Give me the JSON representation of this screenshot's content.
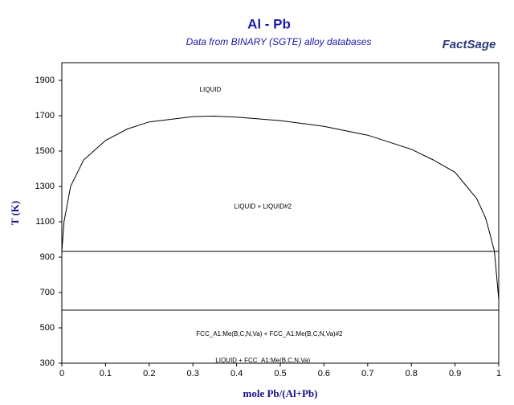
{
  "chart_data": {
    "type": "line",
    "title": "Al - Pb",
    "subtitle": "Data from BINARY (SGTE) alloy databases",
    "logo": "FactSage",
    "x_label": "mole Pb/(Al+Pb)",
    "y_label": "T (K)",
    "xlim": [
      0,
      1
    ],
    "ylim": [
      300,
      2000
    ],
    "xticks": [
      0,
      0.1,
      0.2,
      0.3,
      0.4,
      0.5,
      0.6,
      0.7,
      0.8,
      0.9,
      1
    ],
    "yticks": [
      300,
      500,
      700,
      900,
      1100,
      1300,
      1500,
      1700,
      1900
    ],
    "series": [
      {
        "color": "#000000",
        "x": [
          0,
          0.005,
          0.02,
          0.05,
          0.1,
          0.15,
          0.2,
          0.3,
          0.35,
          0.4,
          0.5,
          0.6,
          0.7,
          0.8,
          0.85,
          0.9,
          0.95,
          0.97,
          0.98,
          0.99,
          0.995,
          1
        ],
        "values": [
          933,
          1100,
          1300,
          1450,
          1560,
          1625,
          1665,
          1695,
          1698,
          1692,
          1672,
          1640,
          1590,
          1510,
          1450,
          1380,
          1230,
          1120,
          1030,
          934,
          800,
          660
        ]
      },
      {
        "color": "#000000",
        "x": [
          0,
          1
        ],
        "values": [
          933,
          933
        ]
      },
      {
        "color": "#000000",
        "x": [
          0,
          1
        ],
        "values": [
          600,
          600
        ]
      }
    ],
    "annotations": [
      {
        "text": "LIQUID",
        "x": 0.34,
        "y": 1845
      },
      {
        "text": "LIQUID + LIQUID#2",
        "x": 0.46,
        "y": 1185
      },
      {
        "text": "LIQUID + FCC_A1:Me(B,C,N,Va)",
        "x": 0.46,
        "y": 315
      },
      {
        "text": "FCC_A1:Me(B,C,N,Va) + FCC_A1:Me(B,C,N,Va)#2",
        "x": 0.475,
        "y": 465
      }
    ]
  }
}
